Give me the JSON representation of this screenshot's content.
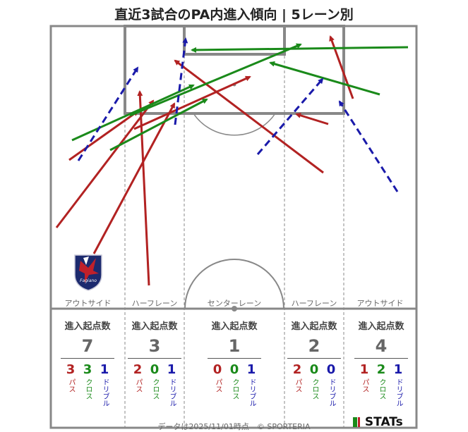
{
  "title": "直近3試合のPA内進入傾向 | 5レーン別",
  "lanes": [
    {
      "label": "アウトサイド",
      "stat_header": "進入起点数",
      "total": "7",
      "pass": "3",
      "cross": "3",
      "dribble": "1"
    },
    {
      "label": "ハーフレーン",
      "stat_header": "進入起点数",
      "total": "3",
      "pass": "2",
      "cross": "0",
      "dribble": "1"
    },
    {
      "label": "センターレーン",
      "stat_header": "進入起点数",
      "total": "1",
      "pass": "0",
      "cross": "0",
      "dribble": "1"
    },
    {
      "label": "ハーフレーン",
      "stat_header": "進入起点数",
      "total": "2",
      "pass": "2",
      "cross": "0",
      "dribble": "0"
    },
    {
      "label": "アウトサイド",
      "stat_header": "進入起点数",
      "total": "4",
      "pass": "1",
      "cross": "2",
      "dribble": "1"
    }
  ],
  "type_labels": {
    "pass": "パス",
    "cross": "クロス",
    "dribble": "ドリブル"
  },
  "colors": {
    "pass": "#b22222",
    "cross": "#1a8a1a",
    "dribble": "#1a1aaa",
    "line": "#888888"
  },
  "footer": "データは2025/11/01時点　© SPORTERIA",
  "brand": "STATs",
  "logo_text": "Fagiano"
}
